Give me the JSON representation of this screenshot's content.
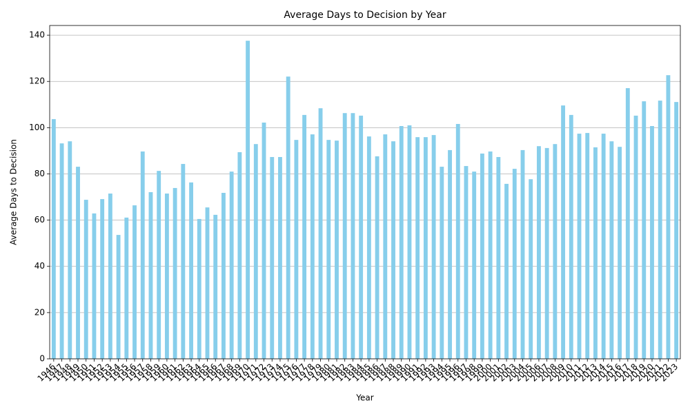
{
  "chart_data": {
    "type": "bar",
    "title": "Average Days to Decision by Year",
    "x_label": "Year",
    "y_label": "Average Days to Decision",
    "categories": [
      "1946",
      "1947",
      "1948",
      "1949",
      "1950",
      "1951",
      "1952",
      "1953",
      "1954",
      "1955",
      "1956",
      "1957",
      "1958",
      "1959",
      "1960",
      "1961",
      "1962",
      "1963",
      "1964",
      "1965",
      "1966",
      "1967",
      "1968",
      "1969",
      "1970",
      "1971",
      "1972",
      "1973",
      "1974",
      "1975",
      "1976",
      "1977",
      "1978",
      "1979",
      "1980",
      "1981",
      "1982",
      "1983",
      "1984",
      "1985",
      "1986",
      "1987",
      "1988",
      "1989",
      "1990",
      "1991",
      "1992",
      "1993",
      "1994",
      "1995",
      "1996",
      "1997",
      "1998",
      "1999",
      "2000",
      "2001",
      "2002",
      "2003",
      "2004",
      "2005",
      "2006",
      "2007",
      "2008",
      "2009",
      "2010",
      "2011",
      "2012",
      "2013",
      "2014",
      "2015",
      "2016",
      "2017",
      "2018",
      "2019",
      "2020",
      "2021",
      "2022",
      "2023"
    ],
    "values": [
      103.7,
      93.2,
      94.1,
      83.1,
      68.8,
      62.9,
      69.1,
      71.5,
      53.6,
      61.1,
      66.4,
      89.7,
      72.1,
      81.3,
      71.5,
      73.9,
      84.3,
      76.3,
      60.5,
      65.5,
      62.3,
      71.8,
      81.0,
      89.4,
      137.6,
      92.9,
      102.2,
      87.3,
      87.3,
      122.1,
      94.7,
      105.5,
      97.1,
      108.4,
      94.7,
      94.4,
      106.3,
      106.3,
      105.2,
      96.2,
      87.6,
      97.1,
      94.1,
      100.7,
      101.0,
      95.9,
      95.9,
      96.8,
      83.1,
      90.3,
      101.6,
      83.4,
      81.0,
      88.8,
      89.7,
      87.3,
      75.7,
      82.2,
      90.3,
      77.7,
      92.0,
      91.2,
      92.9,
      109.6,
      105.5,
      97.4,
      97.7,
      91.5,
      97.4,
      94.1,
      91.7,
      117.1,
      105.2,
      111.4,
      100.7,
      111.7,
      122.7,
      111.1
    ],
    "color": "#87ceeb",
    "ylim": [
      0,
      144.2
    ],
    "yticks": [
      0,
      20,
      40,
      60,
      80,
      100,
      120,
      140
    ],
    "grid": true
  }
}
